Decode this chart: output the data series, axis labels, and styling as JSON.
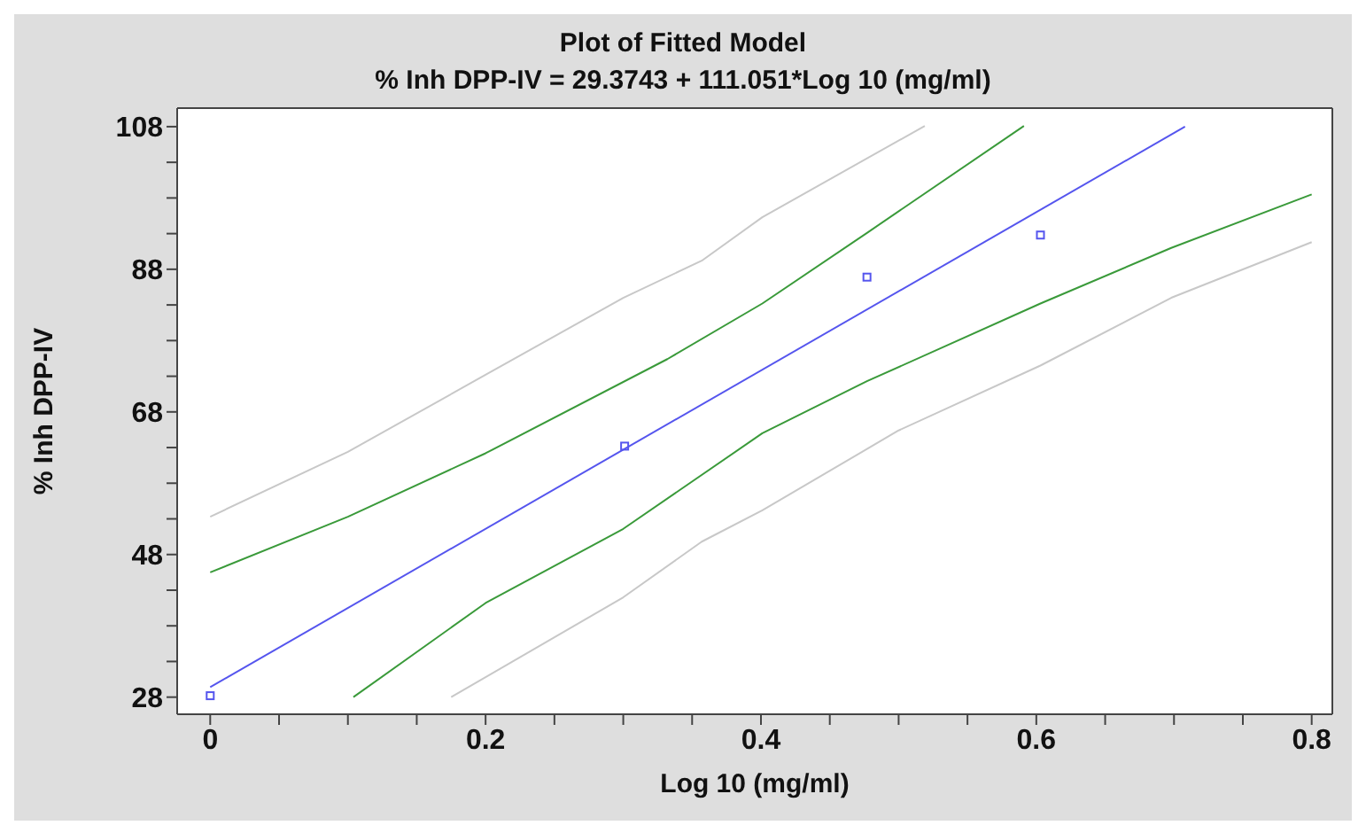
{
  "chart_data": {
    "type": "line",
    "title": "Plot of Fitted Model",
    "subtitle": "% Inh DPP-IV = 29.3743 + 111.051*Log 10 (mg/ml)",
    "xlabel": "Log 10 (mg/ml)",
    "ylabel": "% Inh DPP-IV",
    "xlim": [
      -0.024,
      0.815
    ],
    "ylim": [
      25.6,
      110.6
    ],
    "xticks": [
      0,
      {
        "value": 0.05,
        "label": null
      },
      {
        "value": 0.1,
        "label": null
      },
      {
        "value": 0.15,
        "label": null
      },
      0.2,
      {
        "value": 0.25,
        "label": null
      },
      {
        "value": 0.3,
        "label": null
      },
      {
        "value": 0.35,
        "label": null
      },
      0.4,
      {
        "value": 0.45,
        "label": null
      },
      {
        "value": 0.5,
        "label": null
      },
      {
        "value": 0.55,
        "label": null
      },
      0.6,
      {
        "value": 0.65,
        "label": null
      },
      {
        "value": 0.7,
        "label": null
      },
      {
        "value": 0.75,
        "label": null
      },
      0.8
    ],
    "yticks": [
      28,
      {
        "value": 33,
        "label": null
      },
      {
        "value": 38,
        "label": null
      },
      {
        "value": 43,
        "label": null
      },
      48,
      {
        "value": 53,
        "label": null
      },
      {
        "value": 58,
        "label": null
      },
      {
        "value": 63,
        "label": null
      },
      68,
      {
        "value": 73,
        "label": null
      },
      {
        "value": 78,
        "label": null
      },
      {
        "value": 83,
        "label": null
      },
      88,
      {
        "value": 93,
        "label": null
      },
      {
        "value": 98,
        "label": null
      },
      {
        "value": 103,
        "label": null
      },
      108
    ],
    "marker": "none",
    "series": [
      {
        "type": "line",
        "color": "#c8c8c8",
        "x": [
          0,
          0.1,
          0.2,
          0.3,
          0.357,
          0.401,
          0.519
        ],
        "values": [
          53.3,
          62.4,
          73.2,
          84.0,
          89.2,
          95.3,
          108.1
        ]
      },
      {
        "type": "line",
        "color": "#3a9a3a",
        "x": [
          0,
          0.1,
          0.2,
          0.332,
          0.401,
          0.477,
          0.591
        ],
        "values": [
          45.5,
          53.3,
          62.2,
          75.4,
          83.2,
          93.1,
          108.1
        ]
      },
      {
        "type": "line",
        "color": "#5555ee",
        "x": [
          0,
          0.708
        ],
        "values": [
          29.4,
          108.0
        ]
      },
      {
        "type": "line",
        "color": "#3a9a3a",
        "x": [
          0.104,
          0.2,
          0.3,
          0.401,
          0.477,
          0.603,
          0.698,
          0.8
        ],
        "values": [
          28,
          41.2,
          51.6,
          65.0,
          72.3,
          83.2,
          91.0,
          98.5
        ]
      },
      {
        "type": "line",
        "color": "#c8c8c8",
        "x": [
          0.175,
          0.3,
          0.357,
          0.401,
          0.5,
          0.603,
          0.698,
          0.8
        ],
        "values": [
          28,
          42.0,
          49.8,
          54.2,
          65.4,
          74.5,
          84.0,
          91.8
        ]
      },
      {
        "type": "scatter",
        "color": "#5555ee",
        "marker": "square",
        "x": [
          0,
          0.301,
          0.477,
          0.603
        ],
        "values": [
          28.2,
          63.2,
          86.9,
          92.8
        ]
      }
    ]
  }
}
